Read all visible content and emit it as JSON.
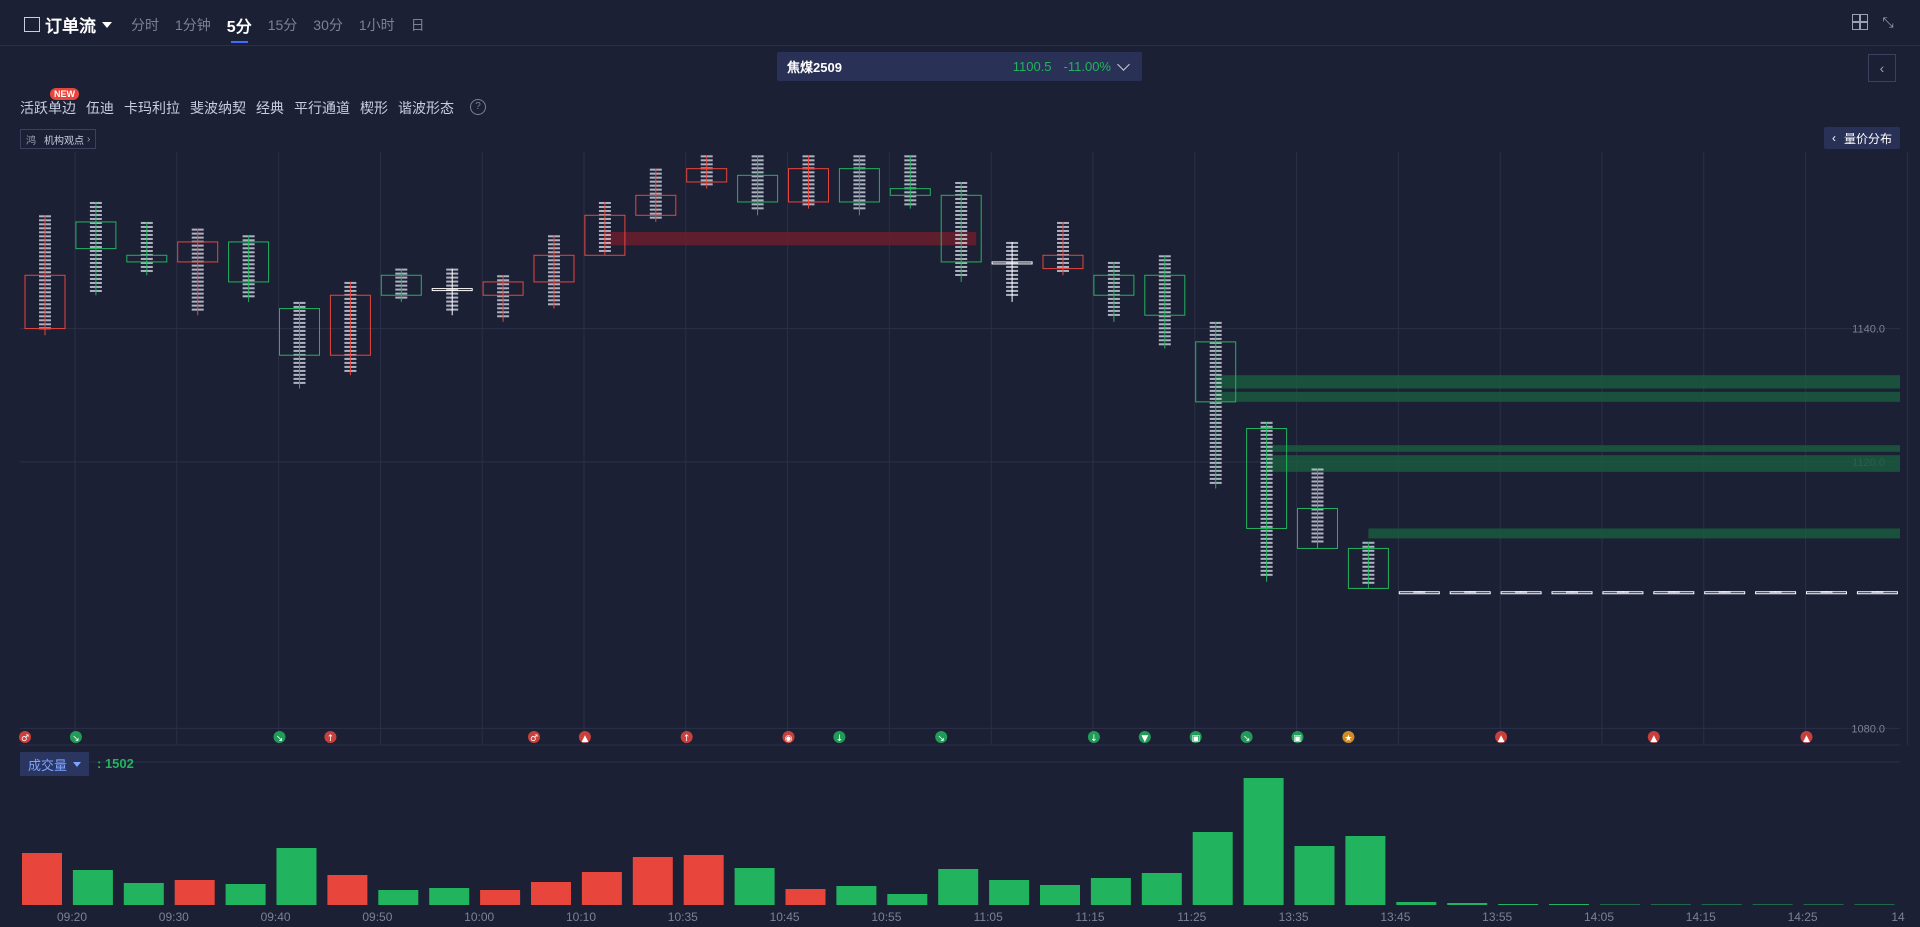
{
  "header": {
    "title": "订单流",
    "tabs": [
      "分时",
      "1分钟",
      "5分",
      "15分",
      "30分",
      "1小时",
      "日"
    ],
    "active_tab": "5分"
  },
  "contract": {
    "name": "焦煤2509",
    "price": "1100.5",
    "change": "-11.00%"
  },
  "tools": {
    "items": [
      "活跃单边",
      "伍迪",
      "卡玛利拉",
      "斐波纳契",
      "经典",
      "平行通道",
      "楔形",
      "谐波形态"
    ],
    "new_badge": "NEW",
    "help": "?"
  },
  "institution": {
    "icon_text": "鸿",
    "label": "机构观点"
  },
  "volume_profile_label": "量价分布",
  "volume": {
    "selector": "成交量",
    "value": ": 1502"
  },
  "colors": {
    "up": "#e8453c",
    "down": "#22b35e",
    "bg": "#1c2035",
    "accent": "#3f6cff"
  },
  "chart_data": {
    "type": "bar",
    "price_axis": {
      "ticks": [
        "1140.0",
        "1120.0",
        "1080.0"
      ]
    },
    "time_labels": [
      "09:20",
      "09:30",
      "09:40",
      "09:50",
      "10:00",
      "10:10",
      "10:35",
      "10:45",
      "10:55",
      "11:05",
      "11:15",
      "11:25",
      "13:35",
      "13:45",
      "13:55",
      "14:05",
      "14:15",
      "14:25",
      "14"
    ],
    "candles": [
      {
        "o": 1148,
        "c": 1140,
        "h": 1157,
        "l": 1139,
        "color": "red"
      },
      {
        "o": 1152,
        "c": 1156,
        "h": 1159,
        "l": 1145,
        "color": "green"
      },
      {
        "o": 1150,
        "c": 1151,
        "h": 1156,
        "l": 1148,
        "color": "green"
      },
      {
        "o": 1153,
        "c": 1150,
        "h": 1155,
        "l": 1142,
        "color": "red"
      },
      {
        "o": 1147,
        "c": 1153,
        "h": 1154,
        "l": 1144,
        "color": "green"
      },
      {
        "o": 1136,
        "c": 1143,
        "h": 1144,
        "l": 1131,
        "color": "green"
      },
      {
        "o": 1145,
        "c": 1136,
        "h": 1147,
        "l": 1133,
        "color": "red"
      },
      {
        "o": 1145,
        "c": 1148,
        "h": 1149,
        "l": 1144,
        "color": "green"
      },
      {
        "o": 1146,
        "c": 1146,
        "h": 1149,
        "l": 1142,
        "color": "white"
      },
      {
        "o": 1147,
        "c": 1145,
        "h": 1148,
        "l": 1141,
        "color": "red"
      },
      {
        "o": 1151,
        "c": 1147,
        "h": 1154,
        "l": 1143,
        "color": "red"
      },
      {
        "o": 1157,
        "c": 1151,
        "h": 1159,
        "l": 1151,
        "color": "red"
      },
      {
        "o": 1160,
        "c": 1157,
        "h": 1164,
        "l": 1156,
        "color": "red"
      },
      {
        "o": 1164,
        "c": 1162,
        "h": 1166,
        "l": 1161,
        "color": "red"
      },
      {
        "o": 1159,
        "c": 1163,
        "h": 1166,
        "l": 1157,
        "color": "green"
      },
      {
        "o": 1164,
        "c": 1159,
        "h": 1166,
        "l": 1158,
        "color": "red"
      },
      {
        "o": 1159,
        "c": 1164,
        "h": 1166,
        "l": 1157,
        "color": "green"
      },
      {
        "o": 1160,
        "c": 1161,
        "h": 1166,
        "l": 1158,
        "color": "green"
      },
      {
        "o": 1150,
        "c": 1160,
        "h": 1162,
        "l": 1147,
        "color": "green"
      },
      {
        "o": 1150,
        "c": 1150,
        "h": 1153,
        "l": 1144,
        "color": "white"
      },
      {
        "o": 1149,
        "c": 1151,
        "h": 1156,
        "l": 1148,
        "color": "red"
      },
      {
        "o": 1145,
        "c": 1148,
        "h": 1150,
        "l": 1141,
        "color": "green"
      },
      {
        "o": 1142,
        "c": 1148,
        "h": 1151,
        "l": 1137,
        "color": "green"
      },
      {
        "o": 1129,
        "c": 1138,
        "h": 1141,
        "l": 1116,
        "color": "green"
      },
      {
        "o": 1110,
        "c": 1125,
        "h": 1126,
        "l": 1102,
        "color": "green"
      },
      {
        "o": 1107,
        "c": 1113,
        "h": 1119,
        "l": 1107,
        "color": "green"
      },
      {
        "o": 1101,
        "c": 1107,
        "h": 1108,
        "l": 1101,
        "color": "green"
      },
      {
        "o": 1100.5,
        "c": 1100.5,
        "h": 1100.6,
        "l": 1100.4,
        "color": "white"
      },
      {
        "o": 1100.5,
        "c": 1100.5,
        "h": 1100.6,
        "l": 1100.4,
        "color": "white"
      },
      {
        "o": 1100.5,
        "c": 1100.5,
        "h": 1100.6,
        "l": 1100.4,
        "color": "white"
      },
      {
        "o": 1100.5,
        "c": 1100.5,
        "h": 1100.6,
        "l": 1100.4,
        "color": "white"
      },
      {
        "o": 1100.5,
        "c": 1100.5,
        "h": 1100.6,
        "l": 1100.4,
        "color": "white"
      },
      {
        "o": 1100.5,
        "c": 1100.5,
        "h": 1100.6,
        "l": 1100.4,
        "color": "white"
      },
      {
        "o": 1100.5,
        "c": 1100.5,
        "h": 1100.6,
        "l": 1100.4,
        "color": "white"
      },
      {
        "o": 1100.5,
        "c": 1100.5,
        "h": 1100.6,
        "l": 1100.4,
        "color": "white"
      },
      {
        "o": 1100.5,
        "c": 1100.5,
        "h": 1100.6,
        "l": 1100.4,
        "color": "white"
      },
      {
        "o": 1100.5,
        "c": 1100.5,
        "h": 1100.6,
        "l": 1100.4,
        "color": "white"
      }
    ],
    "zones": [
      {
        "from": 1154.5,
        "to": 1152.5,
        "color": "red",
        "start": 11,
        "end": 18
      },
      {
        "from": 1133,
        "to": 1131,
        "color": "green",
        "start": 23,
        "end": 37
      },
      {
        "from": 1130.5,
        "to": 1129,
        "color": "green",
        "start": 23,
        "end": 37
      },
      {
        "from": 1122.5,
        "to": 1121.5,
        "color": "green",
        "start": 24,
        "end": 37
      },
      {
        "from": 1121,
        "to": 1118.5,
        "color": "green",
        "start": 24,
        "end": 37
      },
      {
        "from": 1110,
        "to": 1108.5,
        "color": "green",
        "start": 26,
        "end": 37
      }
    ],
    "markers": [
      {
        "i": 0,
        "color": "red",
        "sym": "♂"
      },
      {
        "i": 1,
        "color": "green",
        "sym": "↘"
      },
      {
        "i": 5,
        "color": "green",
        "sym": "↘"
      },
      {
        "i": 6,
        "color": "red",
        "sym": "↑"
      },
      {
        "i": 10,
        "color": "red",
        "sym": "♂"
      },
      {
        "i": 11,
        "color": "red",
        "sym": "▲"
      },
      {
        "i": 13,
        "color": "red",
        "sym": "↑"
      },
      {
        "i": 15,
        "color": "red",
        "sym": "◉"
      },
      {
        "i": 16,
        "color": "green",
        "sym": "↓"
      },
      {
        "i": 18,
        "color": "green",
        "sym": "↘"
      },
      {
        "i": 21,
        "color": "green",
        "sym": "↓"
      },
      {
        "i": 22,
        "color": "green",
        "sym": "▼"
      },
      {
        "i": 23,
        "color": "green",
        "sym": "▣"
      },
      {
        "i": 24,
        "color": "green",
        "sym": "↘"
      },
      {
        "i": 25,
        "color": "green",
        "sym": "▣"
      },
      {
        "i": 26,
        "color": "orange",
        "sym": "★"
      },
      {
        "i": 29,
        "color": "red",
        "sym": "▲"
      },
      {
        "i": 32,
        "color": "red",
        "sym": "▲"
      },
      {
        "i": 35,
        "color": "red",
        "sym": "▲"
      }
    ],
    "volume": {
      "values": [
        52,
        35,
        22,
        25,
        21,
        57,
        30,
        15,
        17,
        15,
        23,
        33,
        48,
        50,
        37,
        16,
        19,
        11,
        36,
        25,
        20,
        27,
        32,
        73,
        127,
        59,
        69,
        3,
        2,
        1,
        1,
        0.5,
        0.5,
        0.5,
        0.5,
        0.5,
        0.5
      ],
      "colors": [
        "red",
        "green",
        "green",
        "red",
        "green",
        "green",
        "red",
        "green",
        "green",
        "red",
        "red",
        "red",
        "red",
        "red",
        "green",
        "red",
        "green",
        "green",
        "green",
        "green",
        "green",
        "green",
        "green",
        "green",
        "green",
        "green",
        "green",
        "green",
        "green",
        "green",
        "green",
        "green",
        "green",
        "green",
        "green",
        "green",
        "green"
      ]
    }
  }
}
